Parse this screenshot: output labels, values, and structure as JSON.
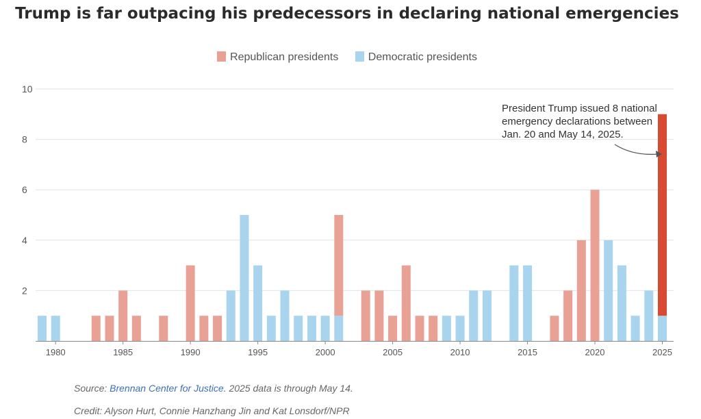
{
  "title": "Trump is far outpacing his predecessors in declaring national emergencies",
  "legend": {
    "republican": "Republican presidents",
    "democratic": "Democratic presidents"
  },
  "colors": {
    "republican": "#e9a196",
    "democratic": "#a8d4ed",
    "trump": "#d84a32",
    "grid": "#e2e2e2",
    "axis": "#888888"
  },
  "annotation": {
    "text": "President Trump issued 8 national emergency declarations between Jan. 20 and May 14, 2025.",
    "lines": [
      "President Trump issued 8 national",
      "emergency declarations between",
      "Jan. 20 and May 14, 2025."
    ]
  },
  "footer": {
    "source_prefix": "Source: ",
    "source_link": "Brennan Center for Justice",
    "source_suffix": ". 2025 data is through May 14.",
    "credit": "Credit: Alyson Hurt, Connie Hanzhang Jin and Kat Lonsdorf/NPR"
  },
  "chart_data": {
    "type": "bar",
    "title": "Trump is far outpacing his predecessors in declaring national emergencies",
    "xlabel": "",
    "ylabel": "",
    "ylim": [
      0,
      10
    ],
    "yticks": [
      2,
      4,
      6,
      8,
      10
    ],
    "xticks": [
      1980,
      1985,
      1990,
      1995,
      2000,
      2005,
      2010,
      2015,
      2020,
      2025
    ],
    "grid": true,
    "legend_position": "top-center",
    "stacked": true,
    "series": [
      {
        "name": "Democratic presidents",
        "key": "democratic"
      },
      {
        "name": "Republican presidents",
        "key": "republican"
      }
    ],
    "years": [
      1979,
      1980,
      1981,
      1982,
      1983,
      1984,
      1985,
      1986,
      1987,
      1988,
      1989,
      1990,
      1991,
      1992,
      1993,
      1994,
      1995,
      1996,
      1997,
      1998,
      1999,
      2000,
      2001,
      2002,
      2003,
      2004,
      2005,
      2006,
      2007,
      2008,
      2009,
      2010,
      2011,
      2012,
      2013,
      2014,
      2015,
      2016,
      2017,
      2018,
      2019,
      2020,
      2021,
      2022,
      2023,
      2024,
      2025
    ],
    "democratic": [
      1,
      1,
      0,
      0,
      0,
      0,
      0,
      0,
      0,
      0,
      0,
      0,
      0,
      0,
      2,
      5,
      3,
      1,
      2,
      1,
      1,
      1,
      1,
      0,
      0,
      0,
      0,
      0,
      0,
      0,
      1,
      1,
      2,
      2,
      0,
      3,
      3,
      0,
      0,
      0,
      0,
      0,
      4,
      3,
      1,
      2,
      1
    ],
    "republican": [
      0,
      0,
      0,
      0,
      1,
      1,
      2,
      1,
      0,
      1,
      0,
      3,
      1,
      1,
      0,
      0,
      0,
      0,
      0,
      0,
      0,
      0,
      4,
      0,
      2,
      2,
      1,
      3,
      1,
      1,
      0,
      0,
      0,
      0,
      0,
      0,
      0,
      0,
      1,
      2,
      4,
      6,
      0,
      0,
      0,
      0,
      8
    ],
    "highlight": {
      "year": 2025,
      "series": "republican",
      "label": "Trump"
    }
  }
}
